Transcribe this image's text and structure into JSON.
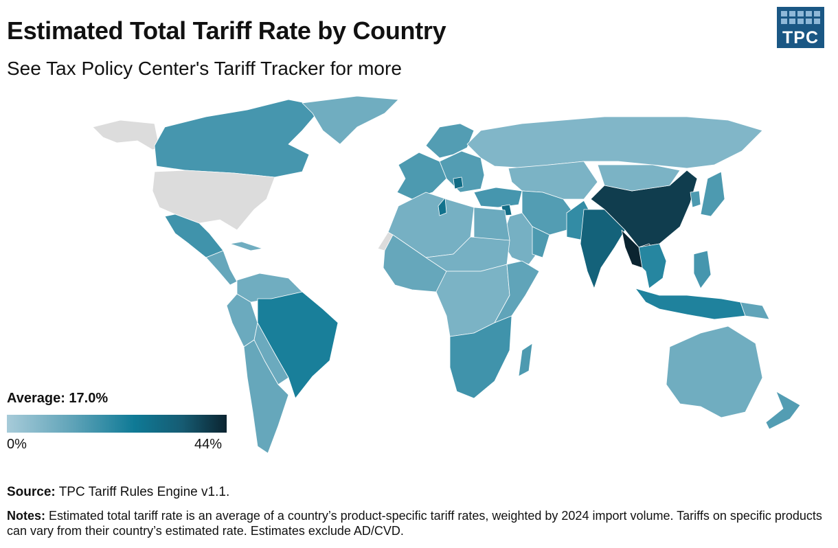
{
  "header": {
    "title": "Estimated Total Tariff Rate by Country",
    "subtitle": "See Tax Policy Center's Tariff Tracker for more",
    "logo_text": "TPC"
  },
  "legend": {
    "average_label": "Average: 17.0%",
    "min_label": "0%",
    "max_label": "44%",
    "scale_min": 0,
    "scale_max": 44
  },
  "map": {
    "type": "choropleth",
    "metric": "Estimated total tariff rate (%)",
    "colors": {
      "no_data": "#dcdcdc",
      "ocean": "#ffffff",
      "border": "#ffffff",
      "low": "#a7cbd9",
      "mid": "#0f7a96",
      "high": "#0b2430"
    },
    "regions": [
      {
        "name": "Alaska (US)",
        "rate": null
      },
      {
        "name": "Canada",
        "rate": 17
      },
      {
        "name": "Greenland",
        "rate": 10
      },
      {
        "name": "United States",
        "rate": null
      },
      {
        "name": "Mexico",
        "rate": 18
      },
      {
        "name": "Central America",
        "rate": 12
      },
      {
        "name": "Cuba",
        "rate": 10
      },
      {
        "name": "Colombia & Venezuela",
        "rate": 10
      },
      {
        "name": "Peru & Ecuador",
        "rate": 11
      },
      {
        "name": "Brazil",
        "rate": 24
      },
      {
        "name": "Bolivia & Paraguay",
        "rate": 11
      },
      {
        "name": "Argentina & Chile",
        "rate": 12
      },
      {
        "name": "Western Europe",
        "rate": 16
      },
      {
        "name": "Eastern Europe",
        "rate": 15
      },
      {
        "name": "Serbia",
        "rate": 30
      },
      {
        "name": "Scandinavia",
        "rate": 15
      },
      {
        "name": "Russia",
        "rate": 7
      },
      {
        "name": "Central Asia",
        "rate": 8
      },
      {
        "name": "Turkey",
        "rate": 17
      },
      {
        "name": "Syria",
        "rate": 30
      },
      {
        "name": "Iran & Afghanistan",
        "rate": 15
      },
      {
        "name": "Pakistan",
        "rate": 20
      },
      {
        "name": "Arabian Peninsula",
        "rate": 9
      },
      {
        "name": "Oman",
        "rate": 16
      },
      {
        "name": "India",
        "rate": 33
      },
      {
        "name": "China",
        "rate": 40
      },
      {
        "name": "Myanmar & Laos",
        "rate": 44
      },
      {
        "name": "Thailand & Vietnam",
        "rate": 22
      },
      {
        "name": "Mongolia",
        "rate": 8
      },
      {
        "name": "Japan",
        "rate": 16
      },
      {
        "name": "Korea",
        "rate": 16
      },
      {
        "name": "Philippines",
        "rate": 17
      },
      {
        "name": "Indonesia",
        "rate": 23
      },
      {
        "name": "Papua New Guinea",
        "rate": 13
      },
      {
        "name": "Australia",
        "rate": 10
      },
      {
        "name": "New Zealand",
        "rate": 15
      },
      {
        "name": "Western Sahara",
        "rate": null
      },
      {
        "name": "North Africa",
        "rate": 9
      },
      {
        "name": "Tunisia",
        "rate": 28
      },
      {
        "name": "Egypt",
        "rate": 11
      },
      {
        "name": "West Africa",
        "rate": 12
      },
      {
        "name": "Sahel",
        "rate": 9
      },
      {
        "name": "Central Africa",
        "rate": 8
      },
      {
        "name": "East Africa",
        "rate": 13
      },
      {
        "name": "Southern Africa",
        "rate": 18
      },
      {
        "name": "Madagascar",
        "rate": 16
      }
    ]
  },
  "footer": {
    "source_label": "Source:",
    "source_text": "TPC Tariff Rules Engine v1.1.",
    "notes_label": "Notes:",
    "notes_text": "Estimated total tariff rate is an average of a country’s product-specific tariff rates, weighted by 2024 import volume. Tariffs on specific products can vary from their country’s estimated rate. Estimates exclude AD/CVD."
  }
}
